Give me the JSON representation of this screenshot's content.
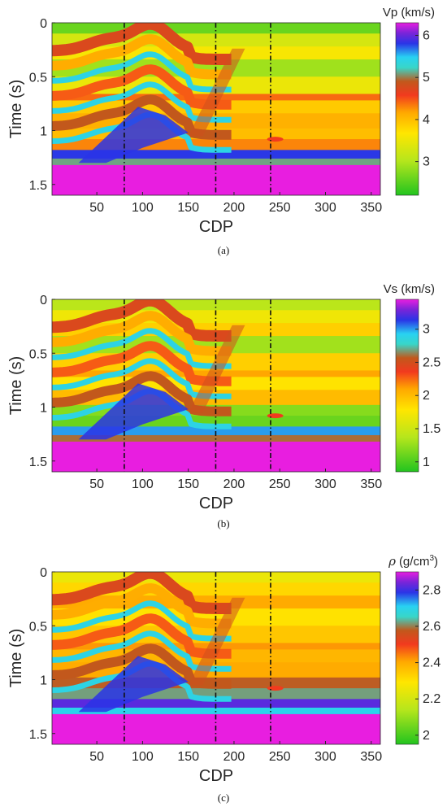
{
  "chart_data": [
    {
      "type": "heatmap",
      "caption": "(a)",
      "xlabel": "CDP",
      "ylabel": "Time (s)",
      "xlim": [
        1,
        360
      ],
      "ylim": [
        1.6,
        0
      ],
      "xticks": [
        "50",
        "100",
        "150",
        "200",
        "250",
        "300",
        "350"
      ],
      "yticks": [
        "0",
        "0.5",
        "1",
        "1.5"
      ],
      "markers_x": [
        80,
        180,
        240
      ],
      "colorbar": {
        "title": "Vp (km/s)",
        "range": [
          2.2,
          6.3
        ],
        "ticks": [
          "6",
          "5",
          "4",
          "3"
        ],
        "tick_values": [
          6,
          5,
          4,
          3
        ]
      },
      "layers": [
        {
          "top": 0.0,
          "bottom": 0.1,
          "value": 2.6
        },
        {
          "top": 0.1,
          "bottom": 0.22,
          "value": 3.3
        },
        {
          "top": 0.22,
          "bottom": 0.34,
          "value": 3.6
        },
        {
          "top": 0.34,
          "bottom": 0.5,
          "value": 2.9
        },
        {
          "top": 0.5,
          "bottom": 0.66,
          "value": 3.5
        },
        {
          "top": 0.66,
          "bottom": 0.72,
          "value": 4.4
        },
        {
          "top": 0.72,
          "bottom": 0.84,
          "value": 3.9
        },
        {
          "top": 0.84,
          "bottom": 0.98,
          "value": 4.1
        },
        {
          "top": 0.98,
          "bottom": 1.08,
          "value": 4.0
        },
        {
          "top": 1.08,
          "bottom": 1.18,
          "value": 4.3
        },
        {
          "top": 1.18,
          "bottom": 1.26,
          "value": 5.8
        },
        {
          "top": 1.26,
          "bottom": 1.32,
          "value": 5.1
        },
        {
          "top": 1.32,
          "bottom": 1.6,
          "value": 6.3
        }
      ]
    },
    {
      "type": "heatmap",
      "caption": "(b)",
      "xlabel": "CDP",
      "ylabel": "Time (s)",
      "xlim": [
        1,
        360
      ],
      "ylim": [
        1.6,
        0
      ],
      "xticks": [
        "50",
        "100",
        "150",
        "200",
        "250",
        "300",
        "350"
      ],
      "yticks": [
        "0",
        "0.5",
        "1",
        "1.5"
      ],
      "markers_x": [
        80,
        180,
        240
      ],
      "colorbar": {
        "title": "Vs (km/s)",
        "range": [
          0.85,
          3.45
        ],
        "ticks": [
          "3",
          "2.5",
          "2",
          "1.5",
          "1"
        ],
        "tick_values": [
          3,
          2.5,
          2,
          1.5,
          1
        ]
      },
      "layers": [
        {
          "top": 0.0,
          "bottom": 0.1,
          "value": 1.4
        },
        {
          "top": 0.1,
          "bottom": 0.22,
          "value": 1.7
        },
        {
          "top": 0.22,
          "bottom": 0.34,
          "value": 1.9
        },
        {
          "top": 0.34,
          "bottom": 0.5,
          "value": 1.3
        },
        {
          "top": 0.5,
          "bottom": 0.66,
          "value": 1.9
        },
        {
          "top": 0.66,
          "bottom": 0.72,
          "value": 2.1
        },
        {
          "top": 0.72,
          "bottom": 0.84,
          "value": 1.8
        },
        {
          "top": 0.84,
          "bottom": 0.98,
          "value": 2.0
        },
        {
          "top": 0.98,
          "bottom": 1.08,
          "value": 1.2
        },
        {
          "top": 1.08,
          "bottom": 1.18,
          "value": 1.1
        },
        {
          "top": 1.18,
          "bottom": 1.26,
          "value": 3.0
        },
        {
          "top": 1.26,
          "bottom": 1.32,
          "value": 2.6
        },
        {
          "top": 1.32,
          "bottom": 1.6,
          "value": 3.45
        }
      ]
    },
    {
      "type": "heatmap",
      "caption": "(c)",
      "xlabel": "CDP",
      "ylabel": "Time (s)",
      "xlim": [
        1,
        360
      ],
      "ylim": [
        1.6,
        0
      ],
      "xticks": [
        "50",
        "100",
        "150",
        "200",
        "250",
        "300",
        "350"
      ],
      "yticks": [
        "0",
        "0.5",
        "1",
        "1.5"
      ],
      "markers_x": [
        80,
        180,
        240
      ],
      "colorbar": {
        "title_symbol": "ρ",
        "title_unit": "(g/cm",
        "title_sup": "3",
        "title_close": ")",
        "range": [
          1.95,
          2.9
        ],
        "ticks": [
          "2.8",
          "2.6",
          "2.4",
          "2.2",
          "2"
        ],
        "tick_values": [
          2.8,
          2.6,
          2.4,
          2.2,
          2.0
        ]
      },
      "layers": [
        {
          "top": 0.0,
          "bottom": 0.1,
          "value": 2.25
        },
        {
          "top": 0.1,
          "bottom": 0.22,
          "value": 2.32
        },
        {
          "top": 0.22,
          "bottom": 0.34,
          "value": 2.4
        },
        {
          "top": 0.34,
          "bottom": 0.5,
          "value": 2.3
        },
        {
          "top": 0.5,
          "bottom": 0.66,
          "value": 2.35
        },
        {
          "top": 0.66,
          "bottom": 0.72,
          "value": 2.42
        },
        {
          "top": 0.72,
          "bottom": 0.84,
          "value": 2.38
        },
        {
          "top": 0.84,
          "bottom": 0.98,
          "value": 2.4
        },
        {
          "top": 0.98,
          "bottom": 1.08,
          "value": 2.58
        },
        {
          "top": 1.08,
          "bottom": 1.18,
          "value": 2.62
        },
        {
          "top": 1.18,
          "bottom": 1.26,
          "value": 2.82
        },
        {
          "top": 1.26,
          "bottom": 1.32,
          "value": 2.7
        },
        {
          "top": 1.32,
          "bottom": 1.6,
          "value": 2.9
        }
      ]
    }
  ]
}
